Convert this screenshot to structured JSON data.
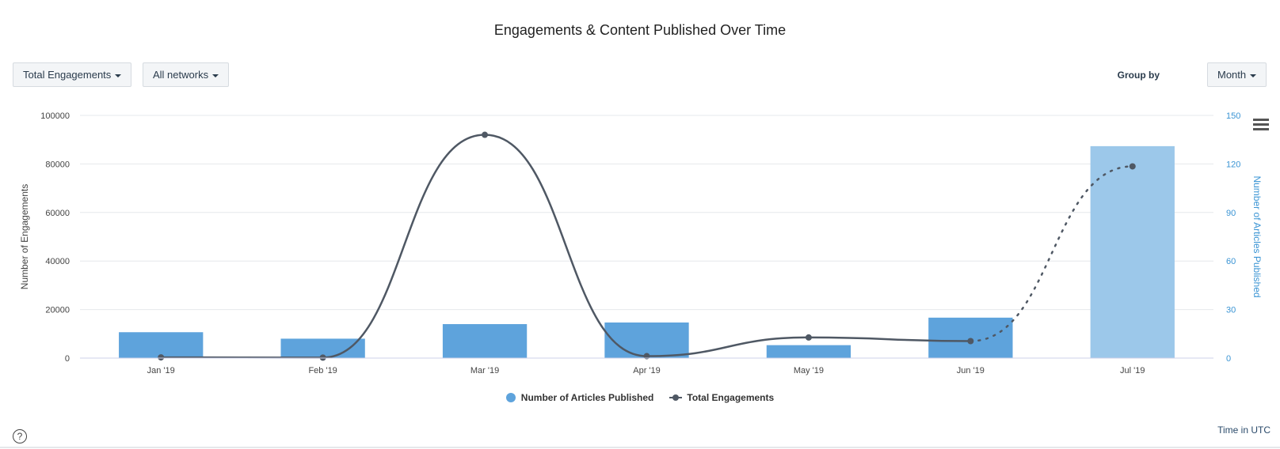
{
  "title": "Engagements & Content Published Over Time",
  "controls": {
    "metric_label": "Total Engagements",
    "network_label": "All networks",
    "group_by_label": "Group by",
    "group_by_value": "Month"
  },
  "footer": {
    "help_glyph": "?",
    "timezone_label": "Time in UTC"
  },
  "colors": {
    "bar": "#5ea3dc",
    "bar_partial": "#9cc8ea",
    "line": "#4f5864",
    "right_axis": "#3a94d4",
    "grid": "#e6e8ec"
  },
  "chart_data": {
    "type": "bar+line",
    "title": "Engagements & Content Published Over Time",
    "categories": [
      "Jan '19",
      "Feb '19",
      "Mar '19",
      "Apr '19",
      "May '19",
      "Jun '19",
      "Jul '19"
    ],
    "y_left": {
      "label": "Number of Engagements",
      "ticks": [
        0,
        20000,
        40000,
        60000,
        80000,
        100000
      ],
      "range": [
        0,
        100000
      ]
    },
    "y_right": {
      "label": "Number of Articles Published",
      "ticks": [
        0,
        30,
        60,
        90,
        120,
        150
      ],
      "range": [
        0,
        150
      ]
    },
    "series": [
      {
        "name": "Number of Articles Published",
        "type": "bar",
        "axis": "right",
        "values": [
          16,
          12,
          21,
          22,
          8,
          25,
          131
        ],
        "partial_last": true
      },
      {
        "name": "Total Engagements",
        "type": "line",
        "axis": "left",
        "values": [
          300,
          200,
          92000,
          800,
          8500,
          7000,
          79000
        ],
        "dotted_last_segment": true
      }
    ],
    "legend": "bottom-center",
    "grid": true
  }
}
